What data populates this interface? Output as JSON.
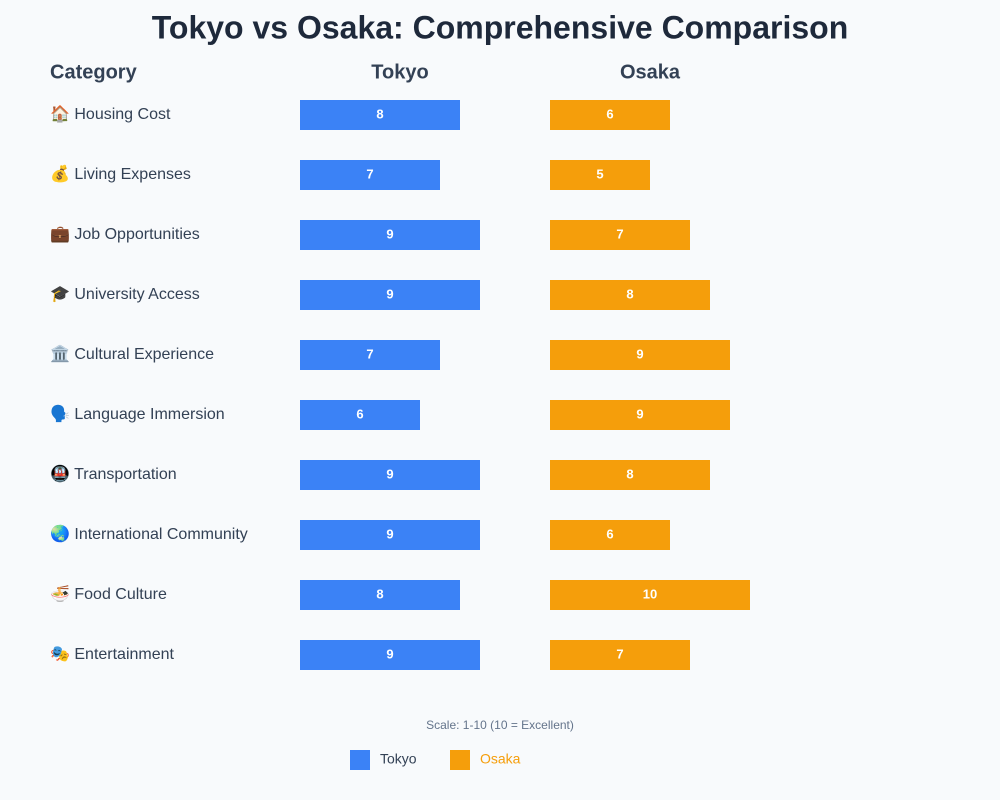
{
  "chart_data": {
    "type": "bar",
    "orientation": "horizontal",
    "title": "Tokyo vs Osaka: Comprehensive Comparison",
    "category_header": "Category",
    "categories": [
      "🏠 Housing Cost",
      "💰 Living Expenses",
      "💼 Job Opportunities",
      "🎓 University Access",
      "🏛️ Cultural Experience",
      "🗣️ Language Immersion",
      "🚇 Transportation",
      "🌏 International Community",
      "🍜 Food Culture",
      "🎭 Entertainment"
    ],
    "series": [
      {
        "name": "Tokyo",
        "color": "#3b82f6",
        "values": [
          8,
          7,
          9,
          9,
          7,
          6,
          9,
          9,
          8,
          9
        ]
      },
      {
        "name": "Osaka",
        "color": "#f59e0b",
        "values": [
          6,
          5,
          7,
          8,
          9,
          9,
          8,
          6,
          10,
          7
        ]
      }
    ],
    "xlim": [
      0,
      10
    ],
    "note": "Scale: 1-10 (10 = Excellent)"
  }
}
